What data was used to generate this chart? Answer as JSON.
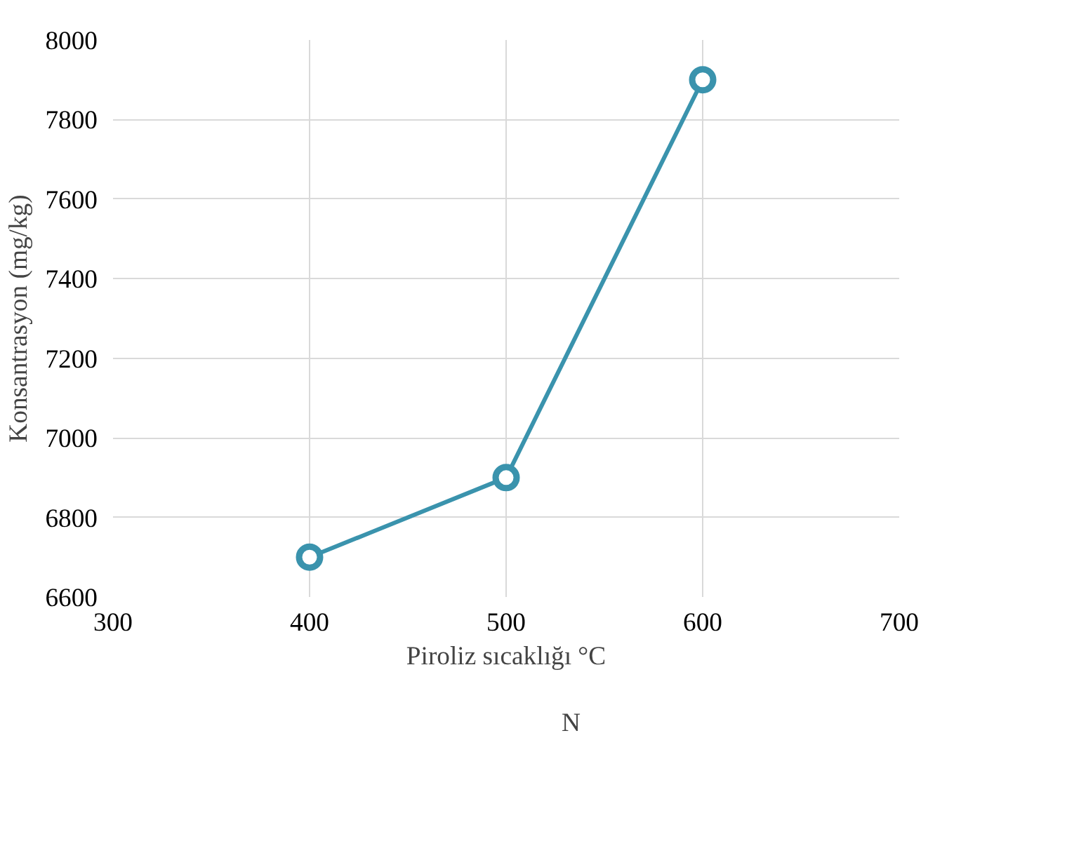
{
  "chart_data": {
    "type": "line",
    "xlabel": "Piroliz sıcaklığı °C",
    "ylabel": "Konsantrasyon (mg/kg)",
    "x": [
      400,
      500,
      600
    ],
    "series": [
      {
        "name": "N",
        "color": "#3a93ad",
        "values": [
          6700,
          6900,
          7900
        ]
      }
    ],
    "xlim": [
      300,
      700
    ],
    "xticks": [
      300,
      400,
      500,
      600,
      700
    ],
    "ylim": [
      6600,
      8000
    ],
    "yticks": [
      6600,
      6800,
      7000,
      7200,
      7400,
      7600,
      7800,
      8000
    ],
    "grid": true,
    "legend": "bottom",
    "marker": "circle",
    "line_style": "solid"
  }
}
